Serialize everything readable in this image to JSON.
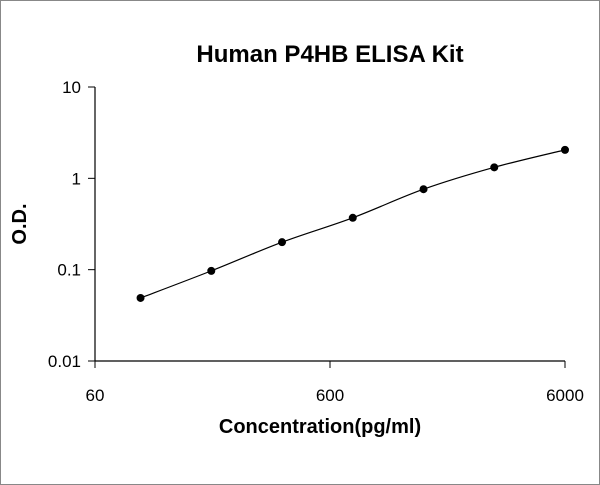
{
  "chart_data": {
    "type": "scatter",
    "title": "Human P4HB ELISA Kit",
    "x_label": "Concentration(pg/ml)",
    "y_label": "O.D.",
    "x": [
      93.75,
      187.5,
      375,
      750,
      1500,
      3000,
      6000
    ],
    "values": [
      0.049,
      0.097,
      0.2,
      0.37,
      0.76,
      1.32,
      2.05
    ],
    "color": "#000000",
    "x_log": true,
    "y_log": true,
    "trendline": true,
    "xlim": [
      60,
      6000
    ],
    "xticks": [
      60,
      600,
      6000
    ],
    "ylim": [
      0.01,
      10
    ],
    "yticks": [
      0.01,
      0.1,
      1,
      10
    ]
  }
}
